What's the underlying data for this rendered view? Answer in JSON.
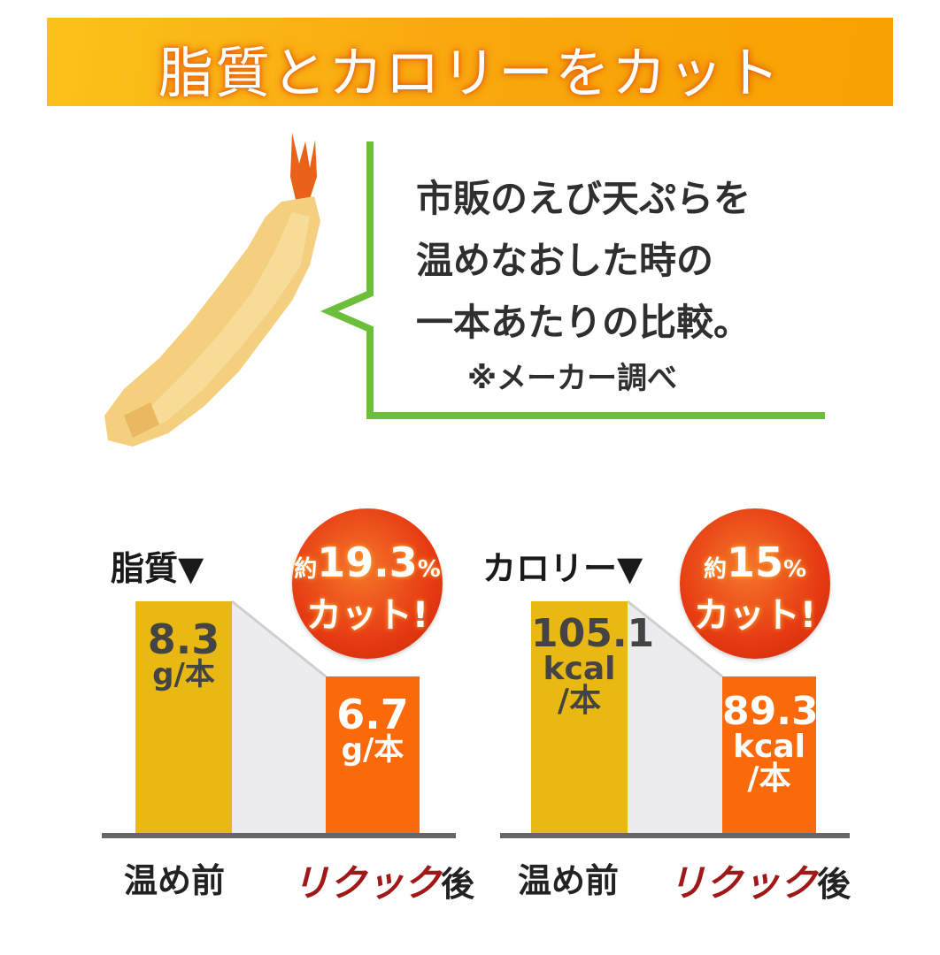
{
  "banner": {
    "title": "脂質とカロリーをカット"
  },
  "callout": {
    "lines": [
      "市販のえび天ぷらを",
      "温めなおした時の",
      "一本あたりの比較。"
    ],
    "note": "※メーカー調べ"
  },
  "colors": {
    "before": "#e9b913",
    "after": "#fb6a0a",
    "accent_green": "#6bbf3a",
    "banner": "#f9a90f",
    "bubble": "#e63a12",
    "brand": "#a01818"
  },
  "chart_data": [
    {
      "type": "bar",
      "title": "脂質▼",
      "categories": [
        "温め前",
        "リクック後"
      ],
      "category_parts": {
        "brand": "リクック",
        "suffix": "後"
      },
      "values": [
        8.3,
        6.7
      ],
      "unit": "g/本",
      "value_labels": [
        "8.3",
        "6.7"
      ],
      "badge": {
        "prefix": "約",
        "value": "19.3",
        "percent": "%",
        "text": "カット!"
      }
    },
    {
      "type": "bar",
      "title": "カロリー▼",
      "categories": [
        "温め前",
        "リクック後"
      ],
      "category_parts": {
        "brand": "リクック",
        "suffix": "後"
      },
      "values": [
        105.1,
        89.3
      ],
      "unit": "kcal/本",
      "unit_lines": [
        "kcal",
        "/本"
      ],
      "value_labels": [
        "105.1",
        "89.3"
      ],
      "badge": {
        "prefix": "約",
        "value": "15",
        "percent": "%",
        "text": "カット!"
      }
    }
  ]
}
